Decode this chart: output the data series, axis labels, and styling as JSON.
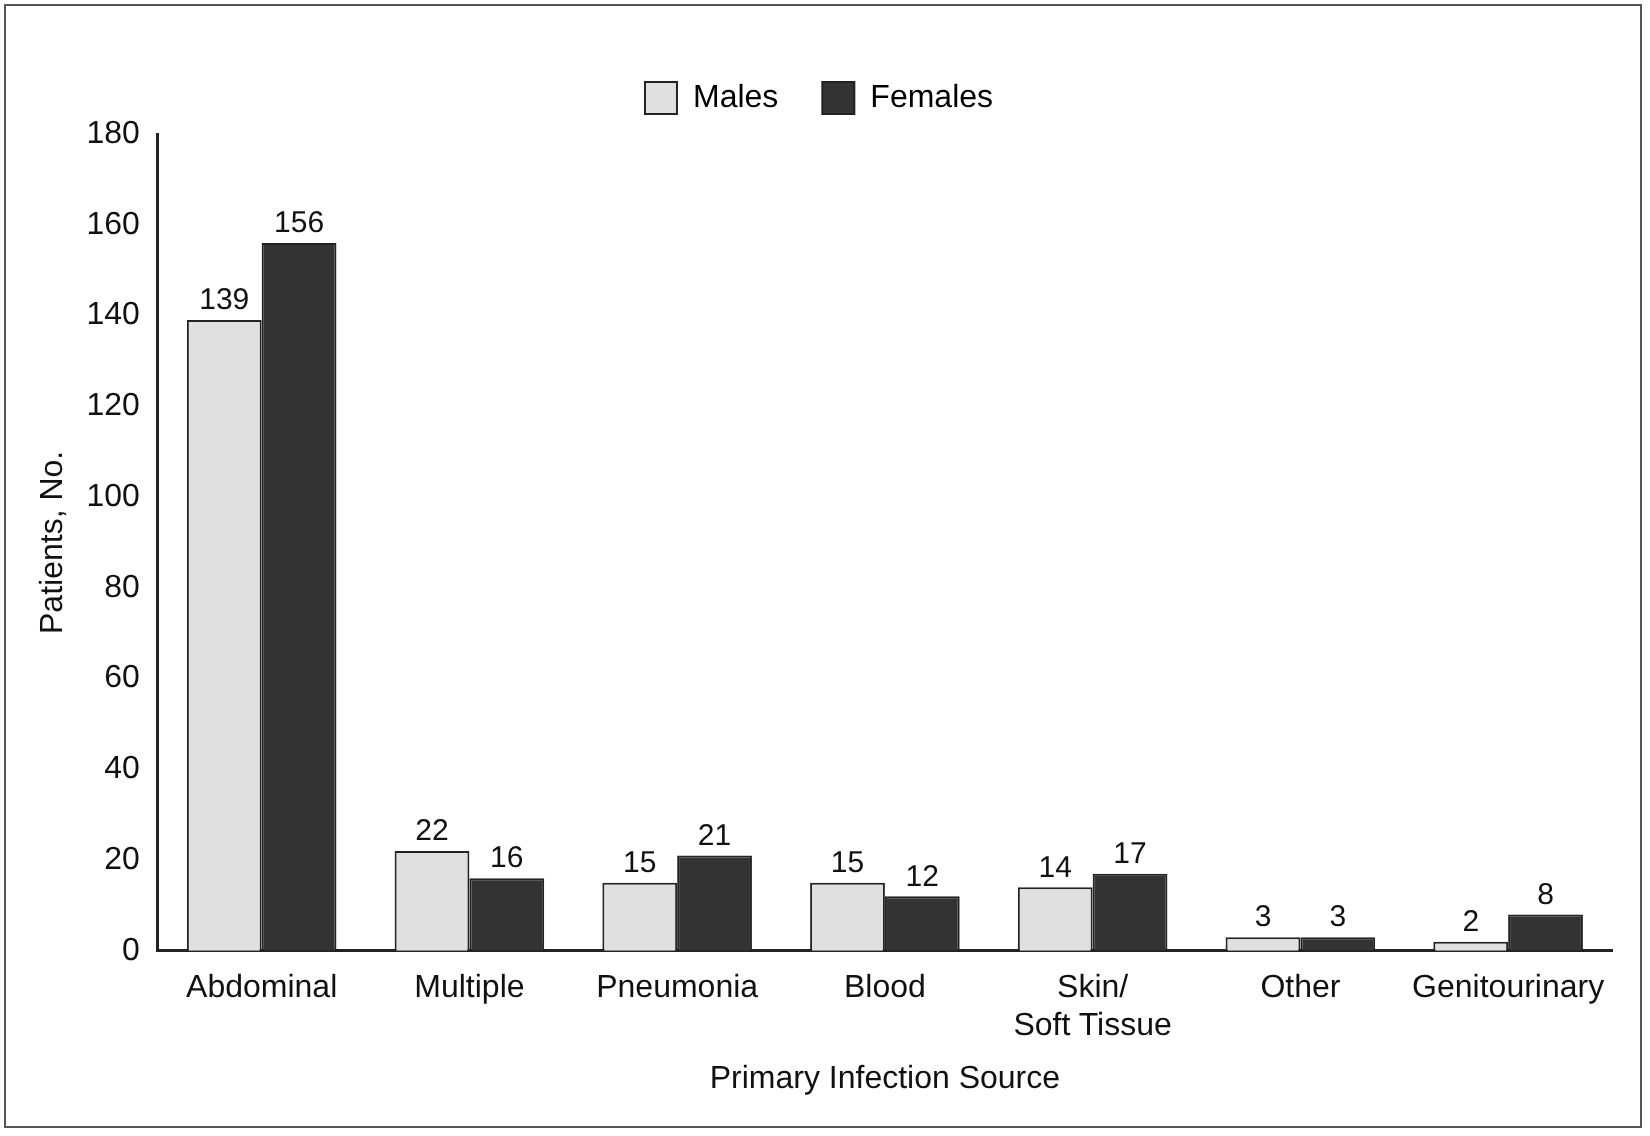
{
  "chart_data": {
    "type": "bar",
    "xlabel": "Primary Infection Source",
    "ylabel": "Patients, No.",
    "categories": [
      "Abdominal",
      "Multiple",
      "Pneumonia",
      "Blood",
      "Skin/\nSoft Tissue",
      "Other",
      "Genitourinary"
    ],
    "series": [
      {
        "name": "Males",
        "color": "#e0e0e0",
        "values": [
          139,
          22,
          15,
          15,
          14,
          3,
          2
        ]
      },
      {
        "name": "Females",
        "color": "#333333",
        "values": [
          156,
          16,
          21,
          12,
          17,
          3,
          8
        ]
      }
    ],
    "ylim": [
      0,
      180
    ],
    "yticks": [
      0,
      20,
      40,
      60,
      80,
      100,
      120,
      140,
      160,
      180
    ],
    "grid": false,
    "legend": "top",
    "data_labels": true
  }
}
